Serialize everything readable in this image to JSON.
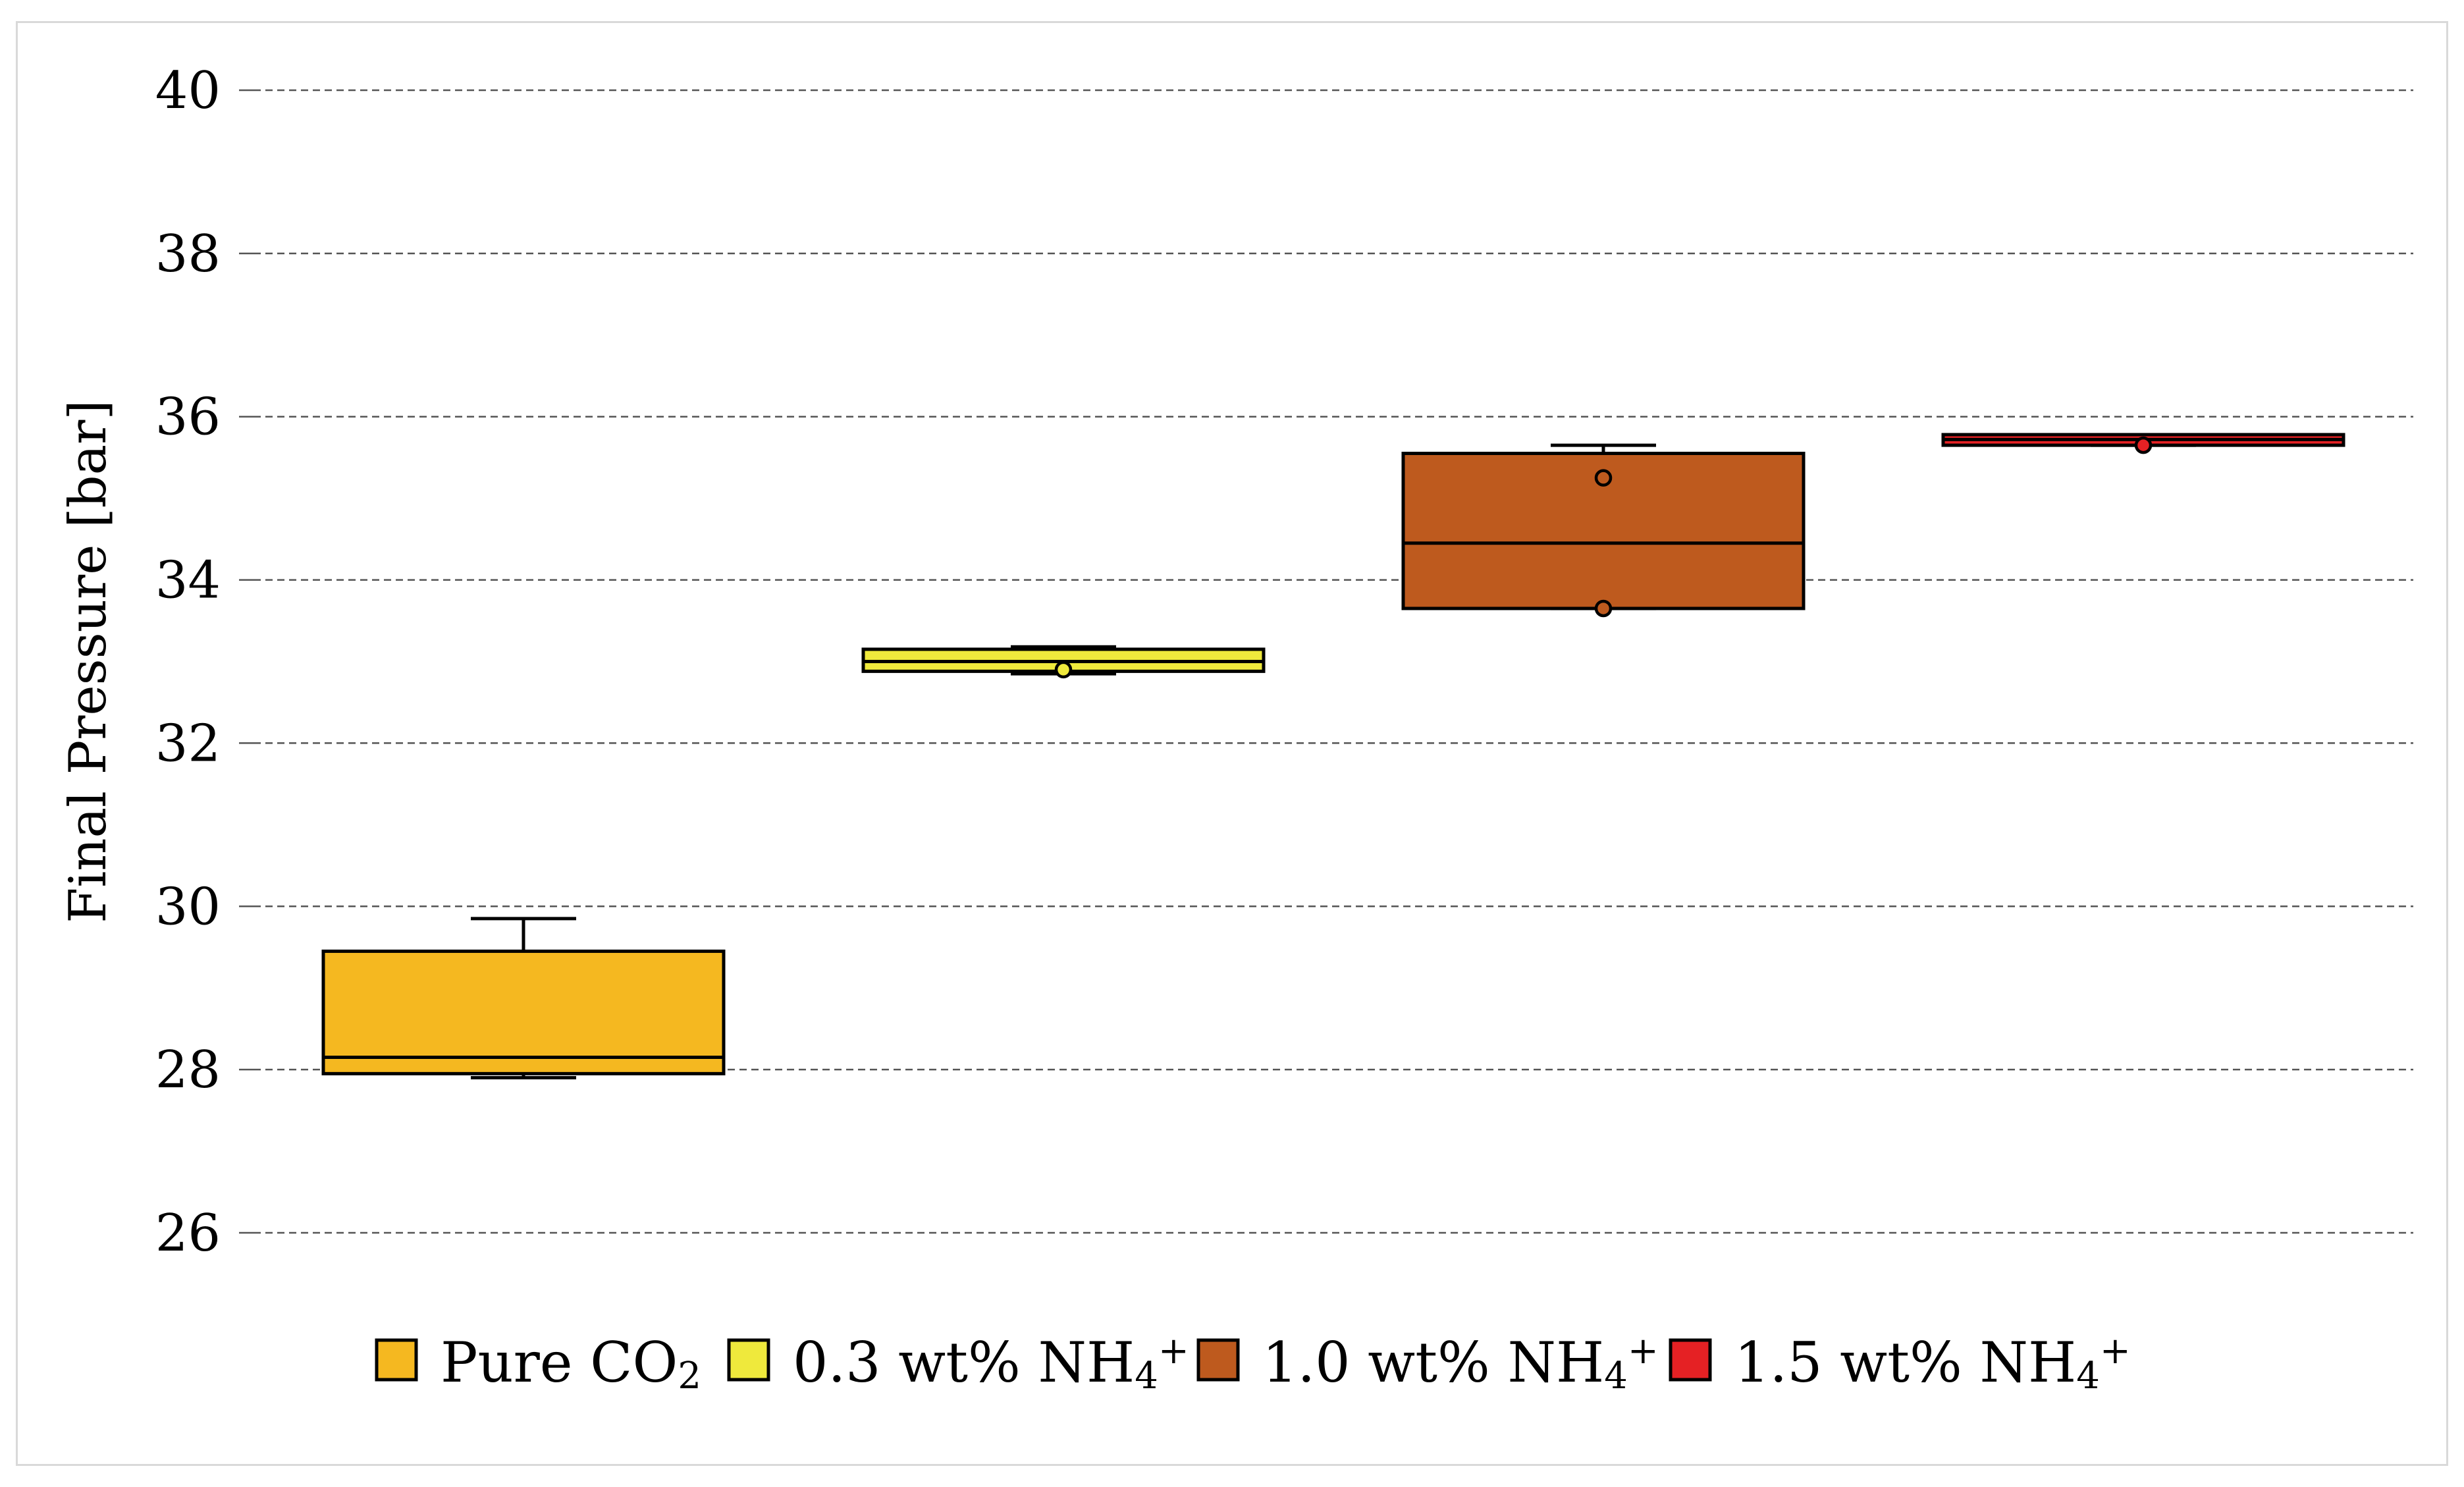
{
  "chart_data": {
    "type": "boxplot",
    "title": "",
    "xlabel": "",
    "ylabel": "Final Pressure [bar]",
    "ylim": [
      26,
      40
    ],
    "yticks": [
      26,
      28,
      30,
      32,
      34,
      36,
      38,
      40
    ],
    "ytick_labels": [
      "26",
      "28",
      "30",
      "32",
      "34",
      "36",
      "38",
      "40"
    ],
    "grid": "horizontal-dashed",
    "legend_position": "bottom",
    "series": [
      {
        "name": "Pure CO2",
        "legend": {
          "base": "Pure CO",
          "sub": "2",
          "sup": ""
        },
        "color": "#F5B820",
        "whisker_low": 27.9,
        "q1": 27.95,
        "median": 28.15,
        "q3": 29.45,
        "whisker_high": 29.85,
        "points": []
      },
      {
        "name": "0.3 wt% NH4+",
        "legend": {
          "base": "0.3 wt% NH",
          "sub": "4",
          "sup": "+"
        },
        "color": "#EFE93C",
        "whisker_low": 32.85,
        "q1": 32.88,
        "median": 33.0,
        "q3": 33.15,
        "whisker_high": 33.18,
        "points": [
          32.9
        ]
      },
      {
        "name": "1.0 wt% NH4+",
        "legend": {
          "base": "1.0 wt% NH",
          "sub": "4",
          "sup": "+"
        },
        "color": "#BE5A1E",
        "whisker_low": 33.65,
        "q1": 33.65,
        "median": 34.45,
        "q3": 35.55,
        "whisker_high": 35.65,
        "points": [
          35.25,
          33.65
        ]
      },
      {
        "name": "1.5 wt% NH4+",
        "legend": {
          "base": "1.5 wt% NH",
          "sub": "4",
          "sup": "+"
        },
        "color": "#E52124",
        "whisker_low": 35.65,
        "q1": 35.65,
        "median": 35.72,
        "q3": 35.78,
        "whisker_high": 35.78,
        "points": [
          35.65
        ]
      }
    ]
  }
}
